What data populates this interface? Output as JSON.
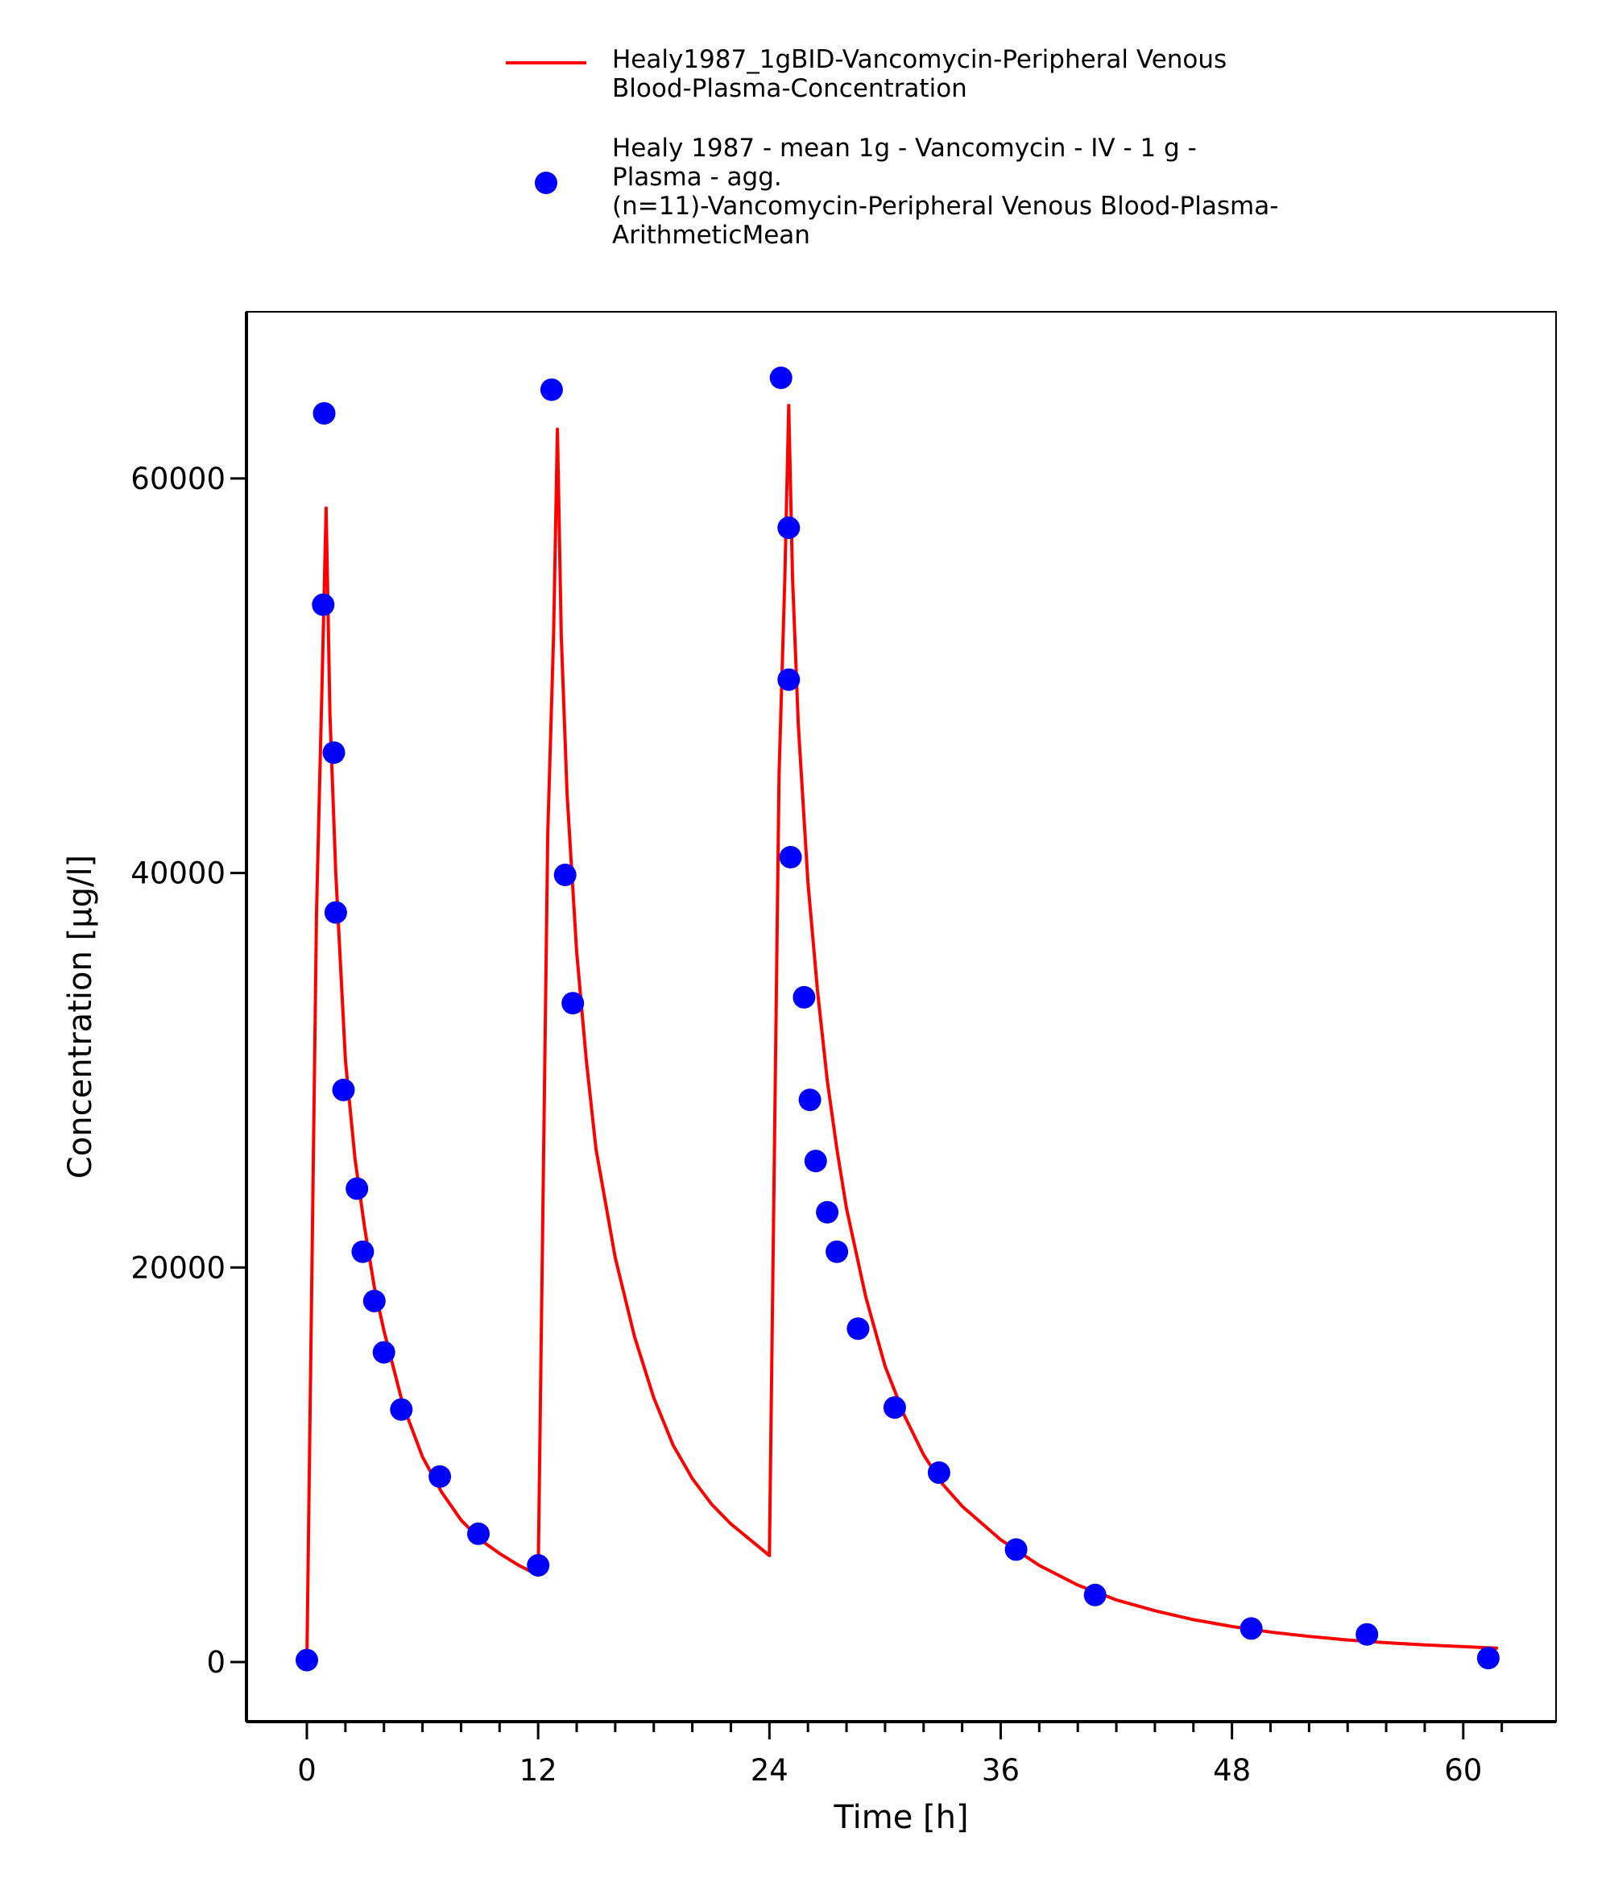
{
  "colors": {
    "simulation": "#ff0000",
    "observed": "#0000ff",
    "axis": "#000000",
    "background": "#ffffff"
  },
  "legend": {
    "placement": "top",
    "line_entry": [
      "Healy1987_1gBID-Vancomycin-Peripheral Venous",
      "Blood-Plasma-Concentration"
    ],
    "marker_entry": [
      "Healy 1987 - mean 1g - Vancomycin - IV - 1 g -",
      "Plasma - agg.",
      "(n=11)-Vancomycin-Peripheral Venous Blood-Plasma-",
      "ArithmeticMean"
    ]
  },
  "chart_data": {
    "type": "line",
    "xlabel": "Time [h]",
    "ylabel": "Concentration [µg/l]",
    "xlim": [
      -3,
      65
    ],
    "ylim": [
      -3300,
      67000
    ],
    "xticks": [
      0,
      12,
      24,
      36,
      48,
      60
    ],
    "yticks": [
      0,
      20000,
      40000,
      60000
    ],
    "grid": false,
    "series": [
      {
        "name": "Healy1987_1gBID-Vancomycin-Peripheral Venous Blood-Plasma-Concentration",
        "kind": "line",
        "x": [
          0,
          0.5,
          0.8,
          1.0,
          1.2,
          1.5,
          2.0,
          2.5,
          3.0,
          3.5,
          4.0,
          5.0,
          6.0,
          7.0,
          8.0,
          9.0,
          10.0,
          11.0,
          12.0,
          12.5,
          12.8,
          13.0,
          13.2,
          13.5,
          14.0,
          14.5,
          15.0,
          16.0,
          17.0,
          18.0,
          19.0,
          20.0,
          21.0,
          22.0,
          23.0,
          24.0,
          24.5,
          24.8,
          25.0,
          25.2,
          25.5,
          26.0,
          26.5,
          27.0,
          27.5,
          28.0,
          29.0,
          30.0,
          31.0,
          32.0,
          33.0,
          34.0,
          36.0,
          38.0,
          40.0,
          42.0,
          44.0,
          46.0,
          48.0,
          50.0,
          52.0,
          54.0,
          56.0,
          58.0,
          60.0,
          61.8
        ],
        "y": [
          0,
          38000,
          50000,
          58500,
          48000,
          40000,
          30500,
          25500,
          22000,
          19000,
          16800,
          13000,
          10400,
          8600,
          7200,
          6200,
          5500,
          4900,
          4400,
          42000,
          52000,
          62500,
          52000,
          44000,
          36000,
          30500,
          26000,
          20500,
          16500,
          13400,
          11000,
          9300,
          8000,
          7000,
          6200,
          5400,
          45000,
          55000,
          63700,
          55000,
          47500,
          39500,
          34000,
          29500,
          26000,
          23000,
          18500,
          15000,
          12500,
          10500,
          9000,
          7900,
          6200,
          4900,
          3900,
          3150,
          2600,
          2150,
          1800,
          1520,
          1300,
          1120,
          980,
          870,
          780,
          700
        ]
      },
      {
        "name": "Healy 1987 - mean 1g - Vancomycin - IV - 1 g - Plasma - agg. (n=11)-Vancomycin-Peripheral Venous Blood-Plasma-ArithmeticMean",
        "kind": "scatter",
        "x": [
          0,
          0.9,
          0.85,
          1.4,
          1.5,
          1.9,
          2.6,
          2.9,
          3.5,
          4.0,
          4.9,
          6.9,
          8.9,
          12.0,
          12.7,
          13.4,
          13.8,
          24.6,
          25.0,
          25.0,
          25.1,
          25.8,
          26.1,
          26.4,
          27.0,
          27.5,
          28.6,
          30.5,
          32.8,
          36.8,
          40.9,
          49.0,
          55.0,
          61.3
        ],
        "y": [
          100,
          63300,
          53600,
          46100,
          38000,
          29000,
          24000,
          20800,
          18300,
          15700,
          12800,
          9400,
          6500,
          4900,
          64500,
          39900,
          33400,
          65100,
          57500,
          49800,
          40800,
          33700,
          28500,
          25400,
          22800,
          20800,
          16900,
          12900,
          9600,
          5700,
          3400,
          1700,
          1400,
          200
        ]
      }
    ]
  }
}
